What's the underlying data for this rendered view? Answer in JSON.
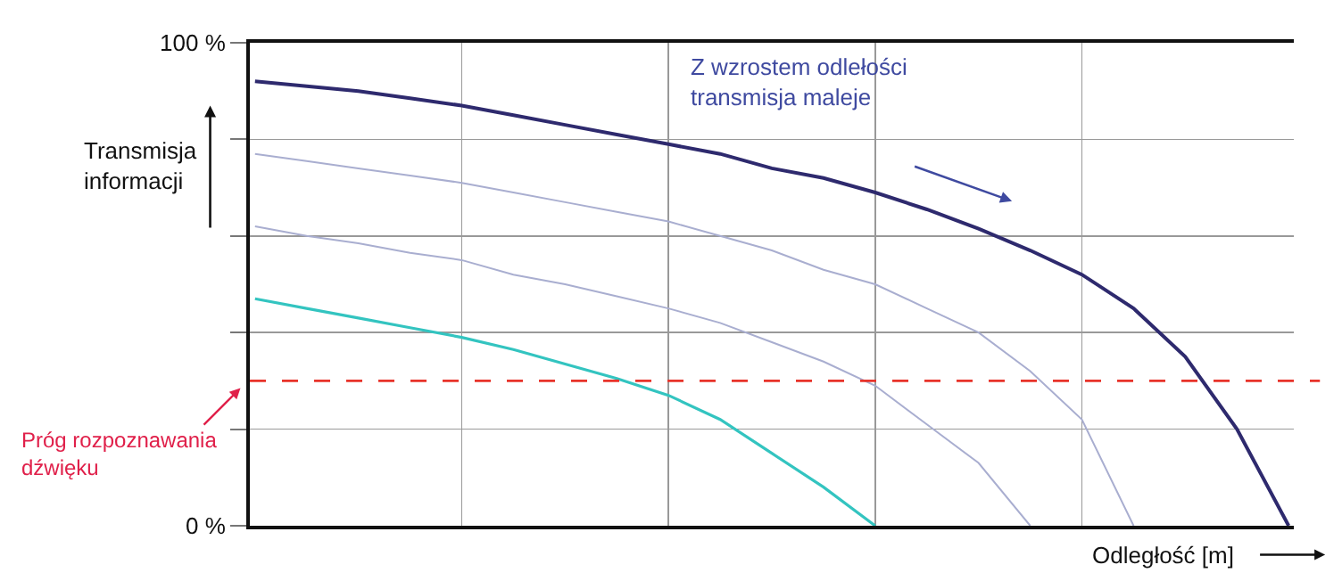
{
  "chart_data": {
    "type": "line",
    "xlabel": "Odległość [m]",
    "ylabel": "Transmisja\ninformacji",
    "categories": [
      null,
      null,
      null,
      null,
      null,
      null,
      null,
      null,
      null,
      null,
      null,
      null,
      null,
      null,
      null,
      null,
      null,
      null,
      null,
      null,
      null
    ],
    "series": [
      {
        "color": "#2e2a6e",
        "values": [
          92,
          91,
          90,
          88.5,
          87,
          85,
          83,
          81,
          79,
          77,
          74,
          72,
          69,
          65.5,
          61.5,
          57,
          52,
          45,
          35,
          20,
          0
        ]
      },
      {
        "color": "#a9aed0",
        "values": [
          77,
          75.5,
          74,
          72.5,
          71,
          69,
          67,
          65,
          63,
          60,
          57,
          53,
          50,
          45,
          40,
          32,
          22,
          0,
          null,
          null,
          null
        ]
      },
      {
        "color": "#a9aed0",
        "values": [
          62,
          60,
          58.5,
          56.5,
          55,
          52,
          50,
          47.5,
          45,
          42,
          38,
          34,
          29,
          21,
          13,
          0,
          null,
          null,
          null,
          null,
          null
        ]
      },
      {
        "color": "#33c4c0",
        "values": [
          47,
          45,
          43,
          41,
          39,
          36.5,
          33.5,
          30.5,
          27,
          22,
          15,
          8,
          0,
          null,
          null,
          null,
          null,
          null,
          null,
          null,
          null
        ]
      }
    ],
    "ylim": [
      0,
      100
    ],
    "yticks": [
      {
        "value": 0,
        "label": "0 %"
      },
      {
        "value": 20,
        "label": null
      },
      {
        "value": 40,
        "label": null
      },
      {
        "value": 60,
        "label": null
      },
      {
        "value": 80,
        "label": null
      },
      {
        "value": 100,
        "label": "100 %"
      }
    ],
    "grid": true,
    "marker": "none",
    "line_style": "solid",
    "tick_labels": "y",
    "ref_lines": [
      {
        "axis": "y",
        "value": 30,
        "label": "Próg rozpoznawania\ndźwięku",
        "color": "#e8332a",
        "line_style": "dashed"
      }
    ],
    "annotations": [
      "Z wzrostem odlełości\ntransmisja maleje"
    ]
  }
}
